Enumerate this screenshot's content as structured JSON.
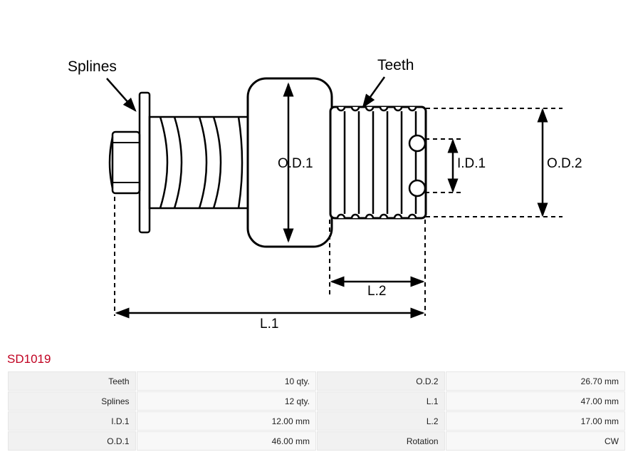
{
  "part_code": "SD1019",
  "diagram": {
    "labels": {
      "splines": "Splines",
      "teeth": "Teeth",
      "od1": "O.D.1",
      "od2": "O.D.2",
      "id1": "I.D.1",
      "l1": "L.1",
      "l2": "L.2"
    },
    "label_fontsize": 20,
    "label_color": "#000000",
    "stroke_color": "#000000",
    "stroke_width": 2.5,
    "dash_pattern": "6,5",
    "background": "#ffffff"
  },
  "specs": [
    {
      "label": "Teeth",
      "value": "10 qty.",
      "label2": "O.D.2",
      "value2": "26.70 mm"
    },
    {
      "label": "Splines",
      "value": "12 qty.",
      "label2": "L.1",
      "value2": "47.00 mm"
    },
    {
      "label": "I.D.1",
      "value": "12.00 mm",
      "label2": "L.2",
      "value2": "17.00 mm"
    },
    {
      "label": "O.D.1",
      "value": "46.00 mm",
      "label2": "Rotation",
      "value2": "CW"
    }
  ]
}
